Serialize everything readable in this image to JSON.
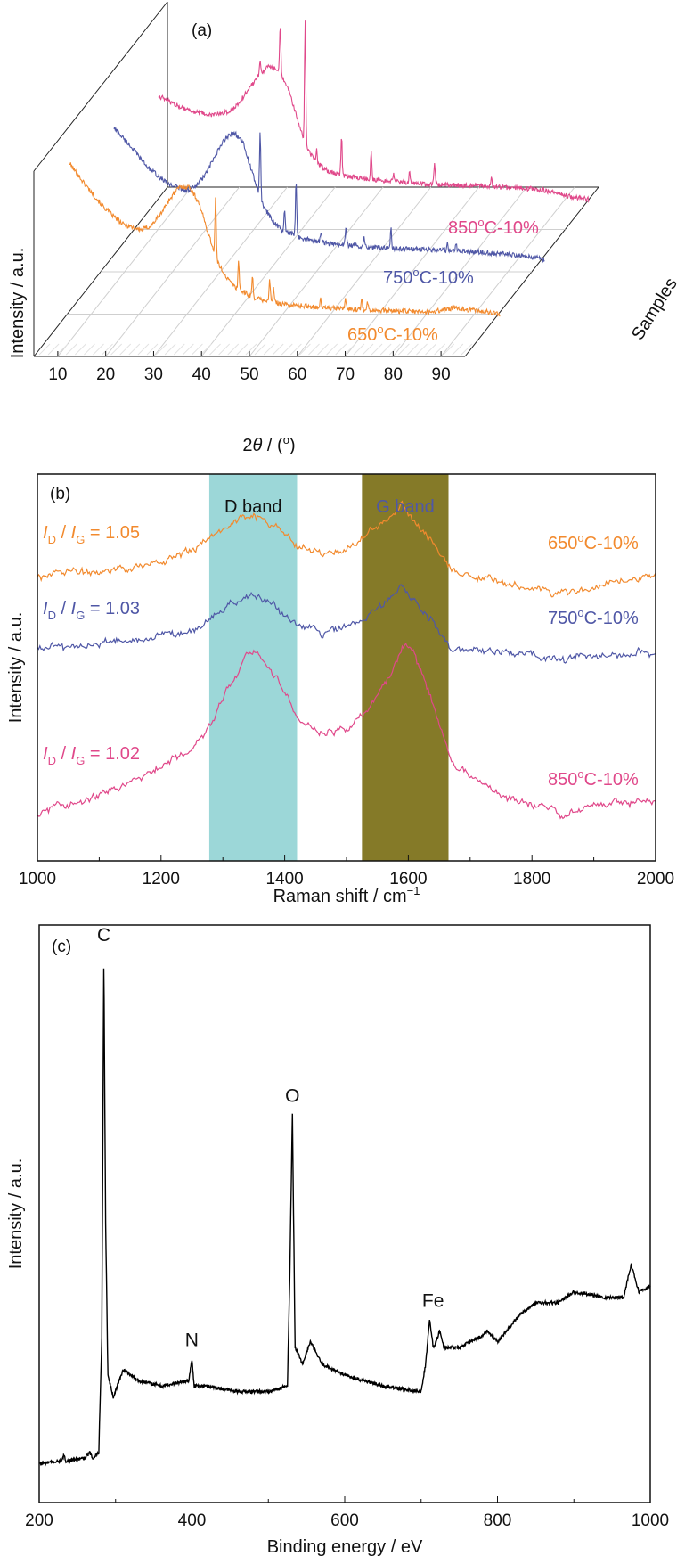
{
  "chart_data": [
    {
      "panel": "(a)",
      "type": "line",
      "style": "3d-waterfall",
      "xlabel": "2θ / (º)",
      "ylabel": "Intensity / a.u.",
      "zlabel": "Samples",
      "xlim": [
        5,
        95
      ],
      "xticks": [
        "10",
        "20",
        "30",
        "40",
        "50",
        "60",
        "70",
        "80",
        "90"
      ],
      "grid": true,
      "series": [
        {
          "name": "650ºC-10%",
          "color": "#f28a2e",
          "x": [
            5,
            8,
            12,
            16,
            20,
            22,
            24,
            26,
            28,
            30,
            32,
            34,
            36,
            38,
            40,
            44,
            50,
            60,
            70,
            80,
            85,
            90,
            95
          ],
          "y": [
            0.84,
            0.74,
            0.62,
            0.53,
            0.5,
            0.52,
            0.58,
            0.66,
            0.72,
            0.72,
            0.64,
            0.48,
            0.33,
            0.25,
            0.2,
            0.15,
            0.12,
            0.1,
            0.09,
            0.08,
            0.1,
            0.09,
            0.07
          ],
          "peaks": [
            {
              "x": 35.5,
              "h": 0.3
            },
            {
              "x": 40.3,
              "h": 0.15
            },
            {
              "x": 43.2,
              "h": 0.1
            },
            {
              "x": 46.8,
              "h": 0.11
            },
            {
              "x": 47.6,
              "h": 0.07
            },
            {
              "x": 57.4,
              "h": 0.04
            },
            {
              "x": 62.6,
              "h": 0.06
            },
            {
              "x": 66.0,
              "h": 0.06
            },
            {
              "x": 67.2,
              "h": 0.05
            }
          ]
        },
        {
          "name": "750ºC-10%",
          "color": "#4f57a6",
          "x": [
            5,
            8,
            12,
            16,
            20,
            22,
            24,
            26,
            28,
            30,
            32,
            34,
            36,
            38,
            40,
            44,
            50,
            60,
            70,
            80,
            85,
            90,
            95
          ],
          "y": [
            0.72,
            0.64,
            0.52,
            0.44,
            0.4,
            0.42,
            0.48,
            0.57,
            0.66,
            0.7,
            0.64,
            0.48,
            0.33,
            0.25,
            0.2,
            0.16,
            0.13,
            0.11,
            0.1,
            0.09,
            0.08,
            0.07,
            0.05
          ],
          "peaks": [
            {
              "x": 35.5,
              "h": 0.34
            },
            {
              "x": 40.6,
              "h": 0.1
            },
            {
              "x": 43.0,
              "h": 0.28
            },
            {
              "x": 48.2,
              "h": 0.05
            },
            {
              "x": 53.4,
              "h": 0.1
            },
            {
              "x": 57.2,
              "h": 0.06
            },
            {
              "x": 62.8,
              "h": 0.1
            },
            {
              "x": 74.6,
              "h": 0.05
            },
            {
              "x": 76.4,
              "h": 0.04
            }
          ]
        },
        {
          "name": "850ºC-10%",
          "color": "#e0488a",
          "x": [
            5,
            8,
            12,
            16,
            20,
            22,
            24,
            26,
            28,
            30,
            32,
            34,
            36,
            38,
            40,
            44,
            50,
            60,
            70,
            80,
            85,
            90,
            95
          ],
          "y": [
            0.58,
            0.54,
            0.5,
            0.48,
            0.5,
            0.55,
            0.62,
            0.69,
            0.73,
            0.71,
            0.62,
            0.46,
            0.31,
            0.24,
            0.2,
            0.17,
            0.15,
            0.13,
            0.12,
            0.11,
            0.1,
            0.07,
            0.05
          ],
          "peaks": [
            {
              "x": 26.2,
              "h": 0.06
            },
            {
              "x": 30.4,
              "h": 0.24
            },
            {
              "x": 35.6,
              "h": 0.62
            },
            {
              "x": 38.0,
              "h": 0.06
            },
            {
              "x": 43.2,
              "h": 0.2
            },
            {
              "x": 49.4,
              "h": 0.15
            },
            {
              "x": 54.0,
              "h": 0.04
            },
            {
              "x": 57.4,
              "h": 0.07
            },
            {
              "x": 62.6,
              "h": 0.12
            },
            {
              "x": 74.5,
              "h": 0.05
            }
          ]
        }
      ]
    },
    {
      "panel": "(b)",
      "type": "line",
      "xlabel": "Raman shift / cm⁻¹",
      "ylabel": "Intensity / a.u.",
      "xlim": [
        1000,
        2000
      ],
      "ylim": [
        0,
        1
      ],
      "xticks": [
        "1000",
        "1200",
        "1400",
        "1600",
        "1800",
        "2000"
      ],
      "bands": [
        {
          "label": "D band",
          "from": 1278,
          "to": 1420,
          "color": "#9cd7d8",
          "label_color": "#111111"
        },
        {
          "label": "G band",
          "from": 1525,
          "to": 1665,
          "color": "#857a28",
          "label_color": "#4f57a6"
        }
      ],
      "series": [
        {
          "name": "650ºC-10%",
          "ratio_value": "= 1.05",
          "color": "#f28a2e",
          "x": [
            1000,
            1100,
            1200,
            1250,
            1290,
            1320,
            1350,
            1380,
            1420,
            1460,
            1500,
            1540,
            1570,
            1590,
            1610,
            1640,
            1670,
            1750,
            1850,
            1900,
            2000
          ],
          "y": [
            0.74,
            0.75,
            0.77,
            0.8,
            0.85,
            0.88,
            0.9,
            0.87,
            0.82,
            0.8,
            0.8,
            0.85,
            0.89,
            0.92,
            0.88,
            0.82,
            0.75,
            0.72,
            0.69,
            0.71,
            0.74
          ]
        },
        {
          "name": "750ºC-10%",
          "ratio_value": "= 1.03",
          "color": "#4f57a6",
          "x": [
            1000,
            1100,
            1200,
            1250,
            1290,
            1320,
            1350,
            1380,
            1420,
            1460,
            1500,
            1540,
            1570,
            1590,
            1610,
            1640,
            1670,
            1750,
            1850,
            1900,
            2000
          ],
          "y": [
            0.55,
            0.56,
            0.58,
            0.6,
            0.64,
            0.67,
            0.69,
            0.66,
            0.61,
            0.59,
            0.6,
            0.64,
            0.68,
            0.71,
            0.67,
            0.62,
            0.55,
            0.54,
            0.52,
            0.53,
            0.54
          ]
        },
        {
          "name": "850ºC-10%",
          "ratio_value": "= 1.02",
          "color": "#e0488a",
          "x": [
            1000,
            1100,
            1200,
            1250,
            1280,
            1310,
            1340,
            1360,
            1390,
            1420,
            1460,
            1500,
            1540,
            1570,
            1590,
            1610,
            1640,
            1670,
            1750,
            1850,
            1900,
            2000
          ],
          "y": [
            0.12,
            0.17,
            0.24,
            0.29,
            0.35,
            0.45,
            0.54,
            0.54,
            0.46,
            0.37,
            0.33,
            0.34,
            0.4,
            0.48,
            0.56,
            0.54,
            0.4,
            0.25,
            0.17,
            0.12,
            0.14,
            0.16
          ]
        }
      ]
    },
    {
      "panel": "(c)",
      "type": "line",
      "xlabel": "Binding energy / eV",
      "ylabel": "Intensity / a.u.",
      "xlim": [
        200,
        1000
      ],
      "ylim": [
        0,
        1
      ],
      "xticks": [
        "200",
        "400",
        "600",
        "800",
        "1000"
      ],
      "annotations": [
        {
          "label": "C",
          "x": 284.6
        },
        {
          "label": "N",
          "x": 399.8
        },
        {
          "label": "O",
          "x": 531.5
        },
        {
          "label": "Fe",
          "x": 711.0
        }
      ],
      "series": [
        {
          "name": "",
          "color": "#000000",
          "x": [
            200,
            230,
            232,
            235,
            260,
            266,
            268,
            270,
            278,
            282,
            284.6,
            287,
            290,
            297,
            310,
            330,
            360,
            396,
            399.8,
            403,
            420,
            460,
            500,
            525,
            528,
            531.5,
            535,
            545,
            555,
            570,
            600,
            650,
            700,
            706,
            711,
            716,
            720,
            724,
            730,
            750,
            780,
            786,
            800,
            830,
            850,
            880,
            900,
            940,
            965,
            975,
            985,
            1000
          ],
          "y": [
            0.07,
            0.075,
            0.085,
            0.075,
            0.08,
            0.09,
            0.085,
            0.08,
            0.09,
            0.3,
            0.99,
            0.5,
            0.23,
            0.19,
            0.24,
            0.22,
            0.21,
            0.22,
            0.26,
            0.21,
            0.21,
            0.2,
            0.2,
            0.21,
            0.4,
            0.7,
            0.28,
            0.25,
            0.29,
            0.25,
            0.23,
            0.21,
            0.2,
            0.25,
            0.33,
            0.28,
            0.29,
            0.31,
            0.28,
            0.28,
            0.3,
            0.31,
            0.29,
            0.34,
            0.36,
            0.36,
            0.38,
            0.37,
            0.37,
            0.43,
            0.38,
            0.39
          ]
        }
      ]
    }
  ]
}
